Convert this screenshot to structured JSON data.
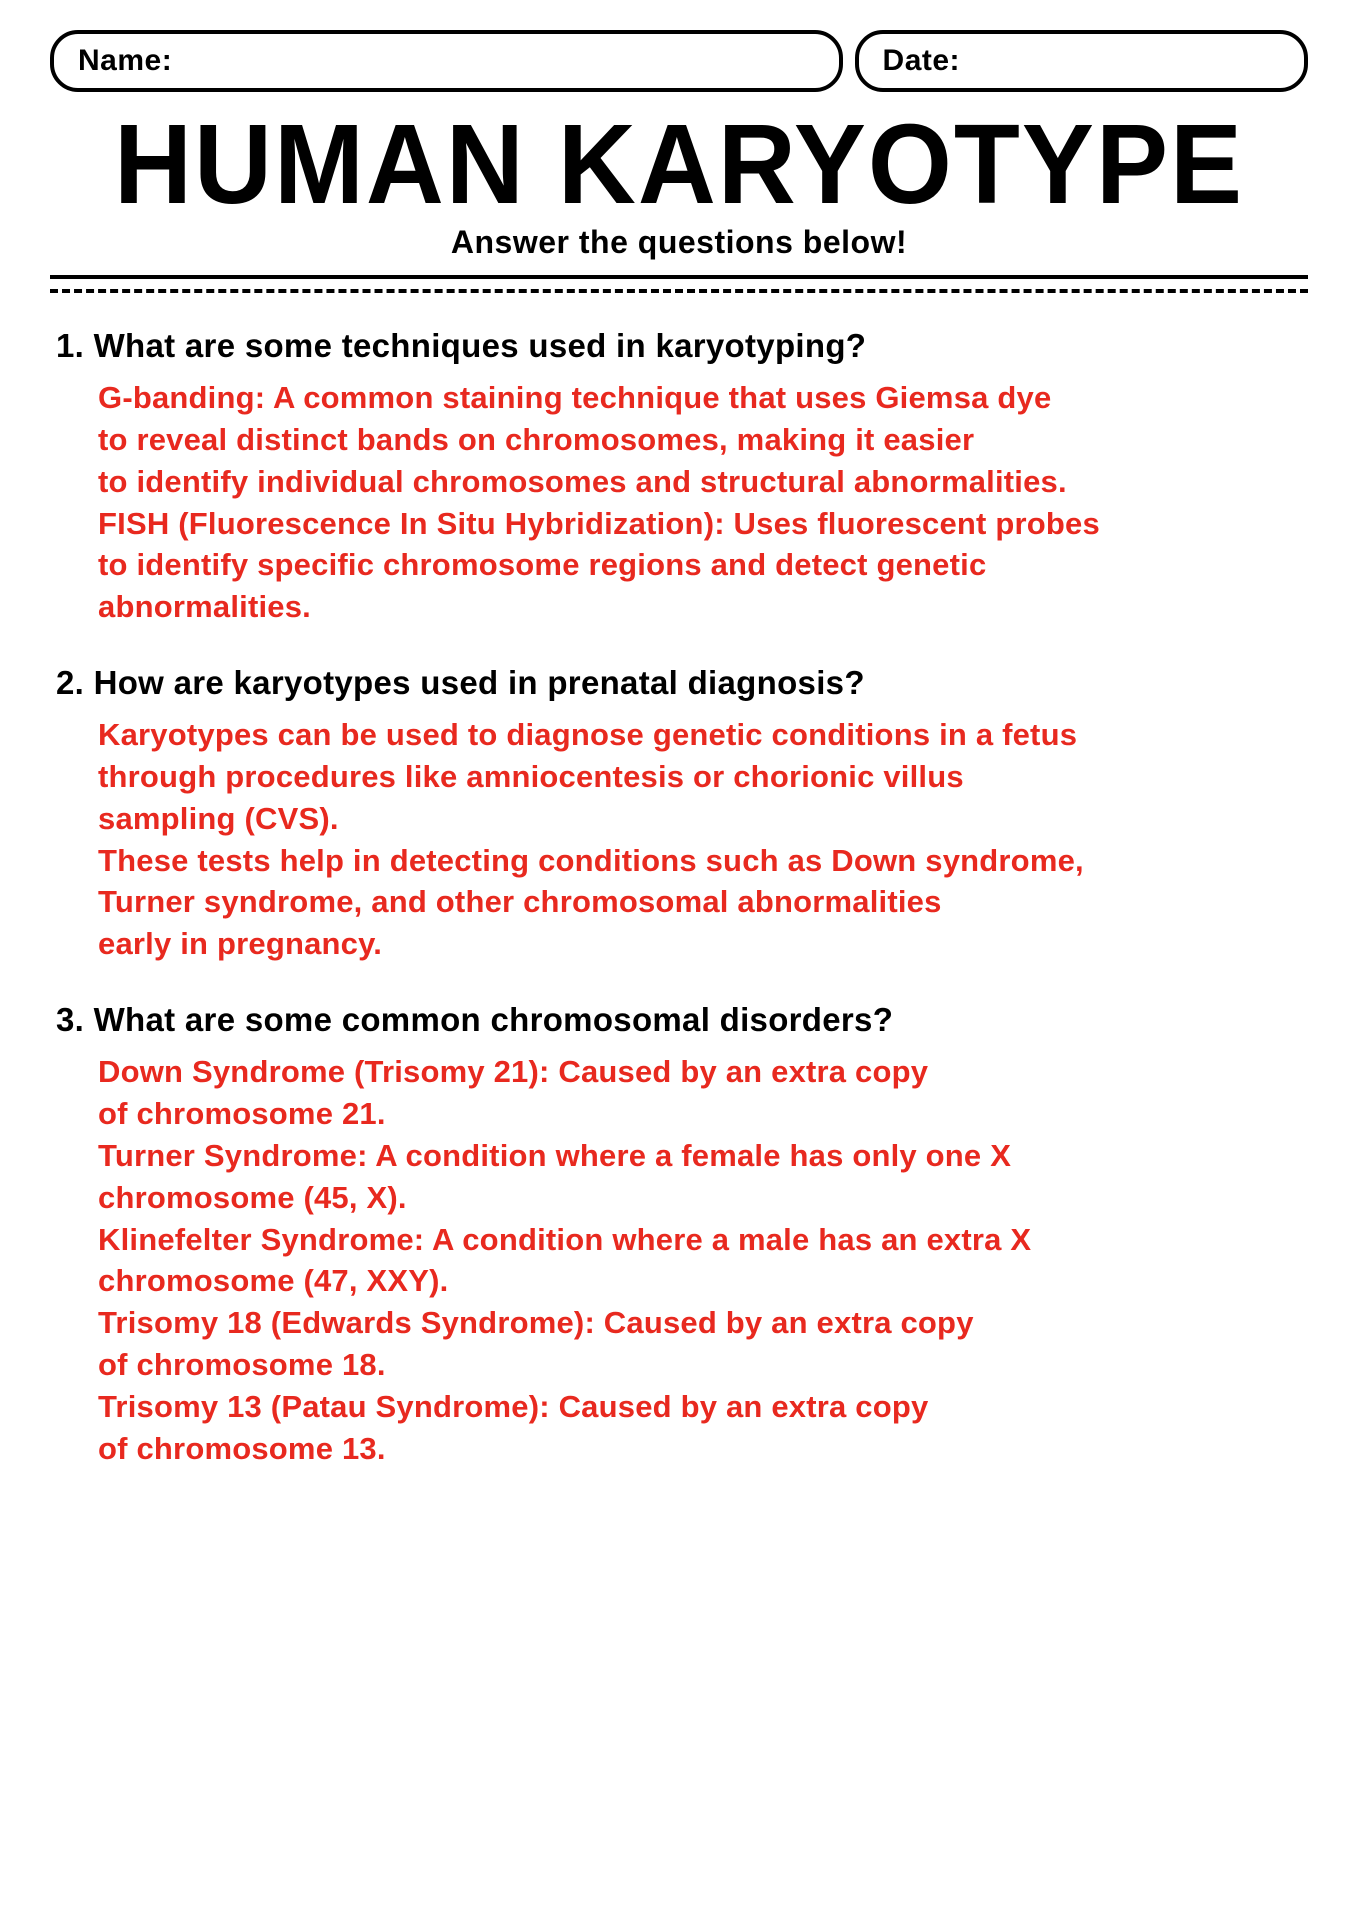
{
  "colors": {
    "answer": "#e8291f",
    "question": "#000000",
    "background": "#ffffff"
  },
  "fields": {
    "name_label": "Name:",
    "date_label": "Date:"
  },
  "title": "HUMAN KARYOTYPE",
  "subtitle": "Answer the questions below!",
  "qa": [
    {
      "num": "1.",
      "question": "What are some techniques used in karyotyping?",
      "answer": "G-banding: A common staining technique that uses Giemsa dye\nto reveal distinct bands on chromosomes, making it easier\nto identify individual chromosomes and structural abnormalities.\nFISH (Fluorescence In Situ Hybridization): Uses fluorescent probes\nto identify specific chromosome regions and detect genetic\nabnormalities."
    },
    {
      "num": "2.",
      "question": "How are karyotypes used in prenatal diagnosis?",
      "answer": "Karyotypes can be used to diagnose genetic conditions in a fetus\nthrough procedures like amniocentesis or chorionic villus\nsampling (CVS).\nThese tests help in detecting conditions such as Down syndrome,\nTurner syndrome, and other chromosomal abnormalities\nearly in pregnancy."
    },
    {
      "num": "3.",
      "question": "What are some common chromosomal disorders?",
      "answer": "Down Syndrome (Trisomy 21): Caused by an extra copy\nof chromosome 21.\nTurner Syndrome: A condition where a female has only one X\nchromosome (45, X).\nKlinefelter Syndrome: A condition where a male has an extra X\nchromosome (47, XXY).\nTrisomy 18 (Edwards Syndrome): Caused by an extra copy\nof chromosome 18.\nTrisomy 13 (Patau Syndrome): Caused by an extra copy\nof chromosome 13."
    }
  ]
}
